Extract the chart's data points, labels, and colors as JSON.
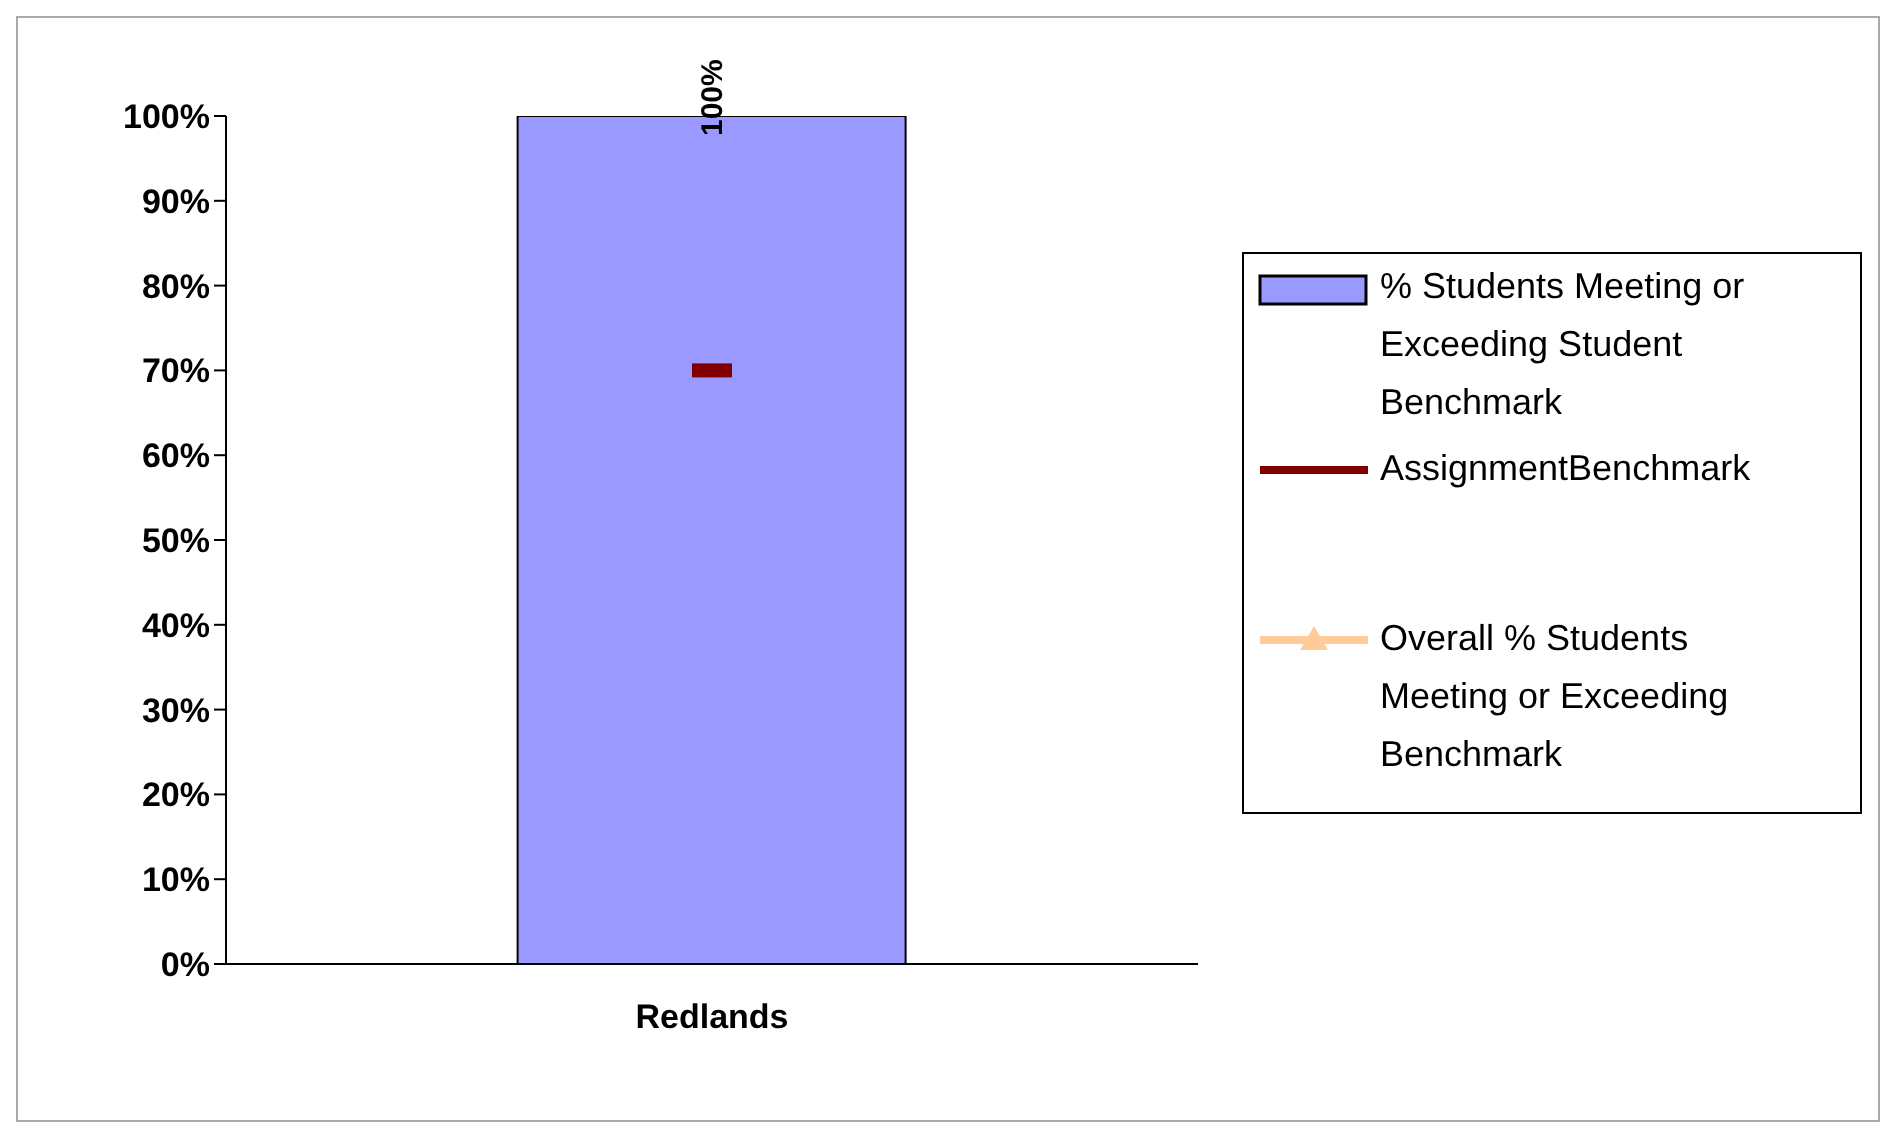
{
  "chart_data": {
    "type": "bar",
    "categories": [
      "Redlands"
    ],
    "series": [
      {
        "name": "% Students Meeting or Exceeding Student Benchmark",
        "color": "#9999ff",
        "values": [
          100
        ],
        "value_labels": [
          "100%"
        ]
      },
      {
        "type": "line",
        "name": "AssignmentBenchmark",
        "color": "#800000",
        "values": [
          70
        ],
        "marker": "square"
      },
      {
        "type": "line",
        "name": "Overall % Students Meeting or Exceeding Benchmark",
        "color": "#ffcc99",
        "values": [
          null
        ],
        "marker": "triangle"
      }
    ],
    "ylim": [
      0,
      100
    ],
    "yticks": [
      {
        "value": 0,
        "label": "0%"
      },
      {
        "value": 10,
        "label": "10%"
      },
      {
        "value": 20,
        "label": "20%"
      },
      {
        "value": 30,
        "label": "30%"
      },
      {
        "value": 40,
        "label": "40%"
      },
      {
        "value": 50,
        "label": "50%"
      },
      {
        "value": 60,
        "label": "60%"
      },
      {
        "value": 70,
        "label": "70%"
      },
      {
        "value": 80,
        "label": "80%"
      },
      {
        "value": 90,
        "label": "90%"
      },
      {
        "value": 100,
        "label": "100%"
      }
    ],
    "grid": false,
    "legend": "right"
  }
}
